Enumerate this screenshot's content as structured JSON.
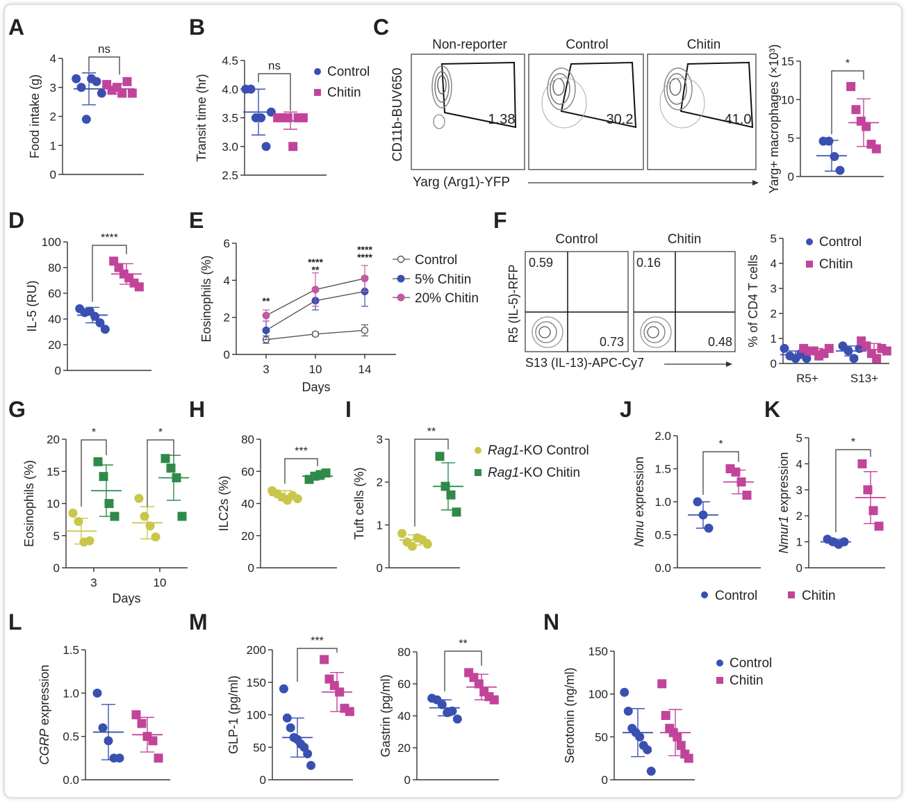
{
  "colors": {
    "control": "#3a50b0",
    "chitin": "#c2449a",
    "c5": "#3a50b0",
    "c20": "#c05aa5",
    "ko_control": "#c9c64a",
    "ko_chitin": "#2f8a4a",
    "axis": "#333333",
    "flow": "#555555"
  },
  "chart_data": [
    {
      "id": "A",
      "panel": "A",
      "type": "scatter",
      "ylabel": "Food intake (g)",
      "yticks": [
        "0",
        "1",
        "2",
        "3",
        "4"
      ],
      "ylim": [
        0,
        4
      ],
      "groups": [
        {
          "name": "Control",
          "values": [
            3.3,
            3.0,
            1.9,
            3.3,
            3.2,
            2.8
          ],
          "mean": 2.95,
          "sd": 0.55
        },
        {
          "name": "Chitin",
          "values": [
            3.1,
            2.9,
            3.0,
            2.8,
            3.2,
            2.8
          ],
          "mean": 2.95,
          "sd": 0.18
        }
      ],
      "sig": [
        {
          "label": "ns"
        }
      ]
    },
    {
      "id": "B",
      "panel": "B",
      "type": "scatter",
      "ylabel": "Transit time (hr)",
      "yticks": [
        "2.5",
        "3.0",
        "3.5",
        "4.0",
        "4.5"
      ],
      "ylim": [
        2.5,
        4.5
      ],
      "groups": [
        {
          "name": "Control",
          "values": [
            4.0,
            4.0,
            3.5,
            3.5,
            3.0,
            3.6
          ],
          "mean": 3.6,
          "sd": 0.4
        },
        {
          "name": "Chitin",
          "values": [
            3.5,
            3.5,
            3.5,
            3.0,
            3.5,
            3.5
          ],
          "mean": 3.45,
          "sd": 0.15
        }
      ],
      "sig": [
        {
          "label": "ns"
        }
      ],
      "legend": [
        {
          "name": "Control",
          "symbol": "circle"
        },
        {
          "name": "Chitin",
          "symbol": "square"
        }
      ]
    },
    {
      "id": "C2",
      "panel": "C",
      "type": "scatter",
      "ylabel": "Yarg+ macrophages (×10³)",
      "yticks": [
        "0",
        "5",
        "10",
        "15"
      ],
      "ylim": [
        0,
        15
      ],
      "groups": [
        {
          "name": "Control",
          "values": [
            4.6,
            4.6,
            2.6,
            0.8
          ],
          "mean": 2.7,
          "sd": 2.0
        },
        {
          "name": "Chitin",
          "values": [
            11.7,
            8.7,
            7.2,
            6.5,
            4.2,
            3.6
          ],
          "mean": 7.0,
          "sd": 3.1
        }
      ],
      "sig": [
        {
          "label": "*"
        }
      ]
    },
    {
      "id": "D",
      "panel": "D",
      "type": "scatter",
      "ylabel": "IL-5 (RU)",
      "yticks": [
        "0",
        "20",
        "40",
        "60",
        "80",
        "100"
      ],
      "ylim": [
        0,
        100
      ],
      "groups": [
        {
          "name": "Control",
          "values": [
            48,
            45,
            46,
            42,
            37,
            32
          ],
          "mean": 43,
          "sd": 6
        },
        {
          "name": "Chitin",
          "values": [
            85,
            80,
            75,
            72,
            68,
            65
          ],
          "mean": 75,
          "sd": 8
        }
      ],
      "sig": [
        {
          "label": "****"
        }
      ]
    },
    {
      "id": "E",
      "panel": "E",
      "type": "line",
      "xlabel": "Days",
      "ylabel": "Eosinophils (%)",
      "categories": [
        "3",
        "10",
        "14"
      ],
      "yticks": [
        "0",
        "2",
        "4",
        "6"
      ],
      "ylim": [
        0,
        6
      ],
      "series": [
        {
          "name": "Control",
          "values": [
            0.8,
            1.1,
            1.3
          ],
          "err": [
            0.2,
            0.1,
            0.3
          ],
          "marker": "open"
        },
        {
          "name": "5% Chitin",
          "values": [
            1.3,
            2.9,
            3.4
          ],
          "err": [
            0.5,
            0.5,
            0.8
          ],
          "marker": "filled"
        },
        {
          "name": "20% Chitin",
          "values": [
            2.1,
            3.5,
            4.1
          ],
          "err": [
            0.3,
            0.9,
            0.7
          ],
          "marker": "filled"
        }
      ],
      "annotations": [
        {
          "x": "3",
          "lines": [
            "**"
          ]
        },
        {
          "x": "10",
          "lines": [
            "****",
            "**"
          ]
        },
        {
          "x": "14",
          "lines": [
            "****",
            "****"
          ]
        }
      ]
    },
    {
      "id": "F2",
      "panel": "F",
      "type": "scatter",
      "xlabel": "",
      "ylabel": "% of CD4 T cells",
      "categories": [
        "R5+",
        "S13+"
      ],
      "yticks": [
        "0",
        "1",
        "2",
        "3",
        "4",
        "5"
      ],
      "ylim": [
        0,
        5
      ],
      "groups": [
        {
          "cat": "R5+",
          "name": "Control",
          "values": [
            0.6,
            0.3,
            0.2,
            0.4,
            0.2
          ],
          "mean": 0.35,
          "sd": 0.15
        },
        {
          "cat": "R5+",
          "name": "Chitin",
          "values": [
            0.6,
            0.5,
            0.5,
            0.3,
            0.4,
            0.6
          ],
          "mean": 0.5,
          "sd": 0.1
        },
        {
          "cat": "S13+",
          "name": "Control",
          "values": [
            0.7,
            0.5,
            0.2,
            0.6
          ],
          "mean": 0.5,
          "sd": 0.2
        },
        {
          "cat": "S13+",
          "name": "Chitin",
          "values": [
            0.9,
            0.7,
            0.4,
            0.2,
            0.6,
            0.5
          ],
          "mean": 0.55,
          "sd": 0.25
        }
      ],
      "legend": [
        {
          "name": "Control",
          "symbol": "circle"
        },
        {
          "name": "Chitin",
          "symbol": "square"
        }
      ]
    },
    {
      "id": "G",
      "panel": "G",
      "type": "scatter",
      "xlabel": "Days",
      "ylabel": "Eosinophils (%)",
      "categories": [
        "3",
        "10"
      ],
      "yticks": [
        "0",
        "5",
        "10",
        "15",
        "20"
      ],
      "ylim": [
        0,
        20
      ],
      "groups": [
        {
          "cat": "3",
          "name": "Rag1-KO Control",
          "values": [
            8.5,
            7.2,
            4.0,
            4.2
          ],
          "mean": 5.7,
          "sd": 2.0
        },
        {
          "cat": "3",
          "name": "Rag1-KO Chitin",
          "values": [
            16.5,
            14.2,
            10.0,
            8.0
          ],
          "mean": 12.0,
          "sd": 4.0
        },
        {
          "cat": "10",
          "name": "Rag1-KO Control",
          "values": [
            10.8,
            8.0,
            6.5,
            4.8
          ],
          "mean": 7.0,
          "sd": 2.5
        },
        {
          "cat": "10",
          "name": "Rag1-KO Chitin",
          "values": [
            17.0,
            15.5,
            14.0,
            8.0
          ],
          "mean": 14.0,
          "sd": 3.5
        }
      ],
      "sig": [
        {
          "label": "*"
        },
        {
          "label": "*"
        }
      ]
    },
    {
      "id": "H",
      "panel": "H",
      "type": "scatter",
      "ylabel": "ILC2s (%)",
      "yticks": [
        "0",
        "20",
        "40",
        "60",
        "80"
      ],
      "ylim": [
        0,
        80
      ],
      "groups": [
        {
          "name": "Rag1-KO Control",
          "values": [
            48,
            46,
            44,
            42,
            45,
            43
          ],
          "mean": 45,
          "sd": 3
        },
        {
          "name": "Rag1-KO Chitin",
          "values": [
            55,
            57,
            58,
            59
          ],
          "mean": 57,
          "sd": 2
        }
      ],
      "sig": [
        {
          "label": "***"
        }
      ]
    },
    {
      "id": "I",
      "panel": "I",
      "type": "scatter",
      "ylabel": "Tuft cells (%)",
      "yticks": [
        "0",
        "1",
        "2",
        "3"
      ],
      "ylim": [
        0,
        3
      ],
      "groups": [
        {
          "name": "Rag1-KO Control",
          "values": [
            0.8,
            0.6,
            0.5,
            0.7,
            0.65,
            0.55
          ],
          "mean": 0.65,
          "sd": 0.12
        },
        {
          "name": "Rag1-KO Chitin",
          "values": [
            2.6,
            1.9,
            1.7,
            1.3
          ],
          "mean": 1.9,
          "sd": 0.55
        }
      ],
      "sig": [
        {
          "label": "**"
        }
      ],
      "legend": [
        {
          "name": "Rag1-KO Control",
          "italic": "Rag1",
          "rest": "-KO Control",
          "symbol": "circle"
        },
        {
          "name": "Rag1-KO Chitin",
          "italic": "Rag1",
          "rest": "-KO Chitin",
          "symbol": "square"
        }
      ]
    },
    {
      "id": "J",
      "panel": "J",
      "type": "scatter",
      "ylabel": "Nmu expression",
      "yticks": [
        "0.0",
        "0.5",
        "1.0",
        "1.5",
        "2.0"
      ],
      "ylim": [
        0,
        2
      ],
      "groups": [
        {
          "name": "Control",
          "values": [
            1.0,
            0.8,
            0.6
          ],
          "mean": 0.8,
          "sd": 0.2
        },
        {
          "name": "Chitin",
          "values": [
            1.5,
            1.45,
            1.3,
            1.1
          ],
          "mean": 1.3,
          "sd": 0.18
        }
      ],
      "sig": [
        {
          "label": "*"
        }
      ]
    },
    {
      "id": "K",
      "panel": "K",
      "type": "scatter",
      "ylabel": "Nmur1 expression",
      "yticks": [
        "0",
        "1",
        "2",
        "3",
        "4",
        "5"
      ],
      "ylim": [
        0,
        5
      ],
      "groups": [
        {
          "name": "Control",
          "values": [
            1.1,
            1.0,
            0.9,
            1.0
          ],
          "mean": 1.0,
          "sd": 0.1
        },
        {
          "name": "Chitin",
          "values": [
            4.0,
            3.0,
            2.2,
            1.6
          ],
          "mean": 2.7,
          "sd": 1.0
        }
      ],
      "sig": [
        {
          "label": "*"
        }
      ]
    },
    {
      "id": "L",
      "panel": "L",
      "type": "scatter",
      "ylabel": "CGRP expression",
      "yticks": [
        "0.0",
        "0.5",
        "1.0",
        "1.5"
      ],
      "ylim": [
        0,
        1.5
      ],
      "groups": [
        {
          "name": "Control",
          "values": [
            1.0,
            0.6,
            0.45,
            0.25,
            0.25
          ],
          "mean": 0.55,
          "sd": 0.32
        },
        {
          "name": "Chitin",
          "values": [
            0.75,
            0.65,
            0.5,
            0.45,
            0.25
          ],
          "mean": 0.52,
          "sd": 0.2
        }
      ]
    },
    {
      "id": "M1",
      "panel": "M",
      "type": "scatter",
      "ylabel": "GLP-1 (pg/ml)",
      "yticks": [
        "0",
        "50",
        "100",
        "150",
        "200"
      ],
      "ylim": [
        0,
        200
      ],
      "groups": [
        {
          "name": "Control",
          "values": [
            140,
            95,
            80,
            65,
            62,
            55,
            50,
            40,
            22
          ],
          "mean": 65,
          "sd": 30
        },
        {
          "name": "Chitin",
          "values": [
            185,
            155,
            145,
            135,
            110,
            105
          ],
          "mean": 135,
          "sd": 30
        }
      ],
      "sig": [
        {
          "label": "***"
        }
      ]
    },
    {
      "id": "M2",
      "panel": "M",
      "type": "scatter",
      "ylabel": "Gastrin (pg/ml)",
      "yticks": [
        "0",
        "20",
        "40",
        "60",
        "80"
      ],
      "ylim": [
        0,
        80
      ],
      "groups": [
        {
          "name": "Control",
          "values": [
            51,
            50,
            47,
            42,
            43,
            38
          ],
          "mean": 45,
          "sd": 5
        },
        {
          "name": "Chitin",
          "values": [
            67,
            64,
            60,
            55,
            52,
            50
          ],
          "mean": 58,
          "sd": 8
        }
      ],
      "sig": [
        {
          "label": "**"
        }
      ]
    },
    {
      "id": "N",
      "panel": "N",
      "type": "scatter",
      "ylabel": "Serotonin (ng/ml)",
      "yticks": [
        "0",
        "50",
        "100",
        "150"
      ],
      "ylim": [
        0,
        150
      ],
      "groups": [
        {
          "name": "Control",
          "values": [
            102,
            80,
            60,
            55,
            50,
            40,
            35,
            10
          ],
          "mean": 55,
          "sd": 28
        },
        {
          "name": "Chitin",
          "values": [
            112,
            75,
            60,
            55,
            50,
            40,
            30,
            25
          ],
          "mean": 55,
          "sd": 27
        }
      ]
    }
  ],
  "panels": {
    "C": {
      "titles": [
        "Non-reporter",
        "Control",
        "Chitin"
      ],
      "gates": [
        "1.38",
        "30.2",
        "41.0"
      ],
      "ylabel": "CD11b-BUV650",
      "xlabel": "Yarg (Arg1)-YFP"
    },
    "F": {
      "titles": [
        "Control",
        "Chitin"
      ],
      "topleft": [
        "0.59",
        "0.16"
      ],
      "bottomright": [
        "0.73",
        "0.48"
      ],
      "ylabel": "R5 (IL-5)-RFP",
      "xlabel": "S13 (IL-13)-APC-Cy7"
    }
  },
  "legends": {
    "E": [
      "Control",
      "5% Chitin",
      "20% Chitin"
    ],
    "JK": [
      "Control",
      "Chitin"
    ],
    "N": [
      "Control",
      "Chitin"
    ]
  }
}
